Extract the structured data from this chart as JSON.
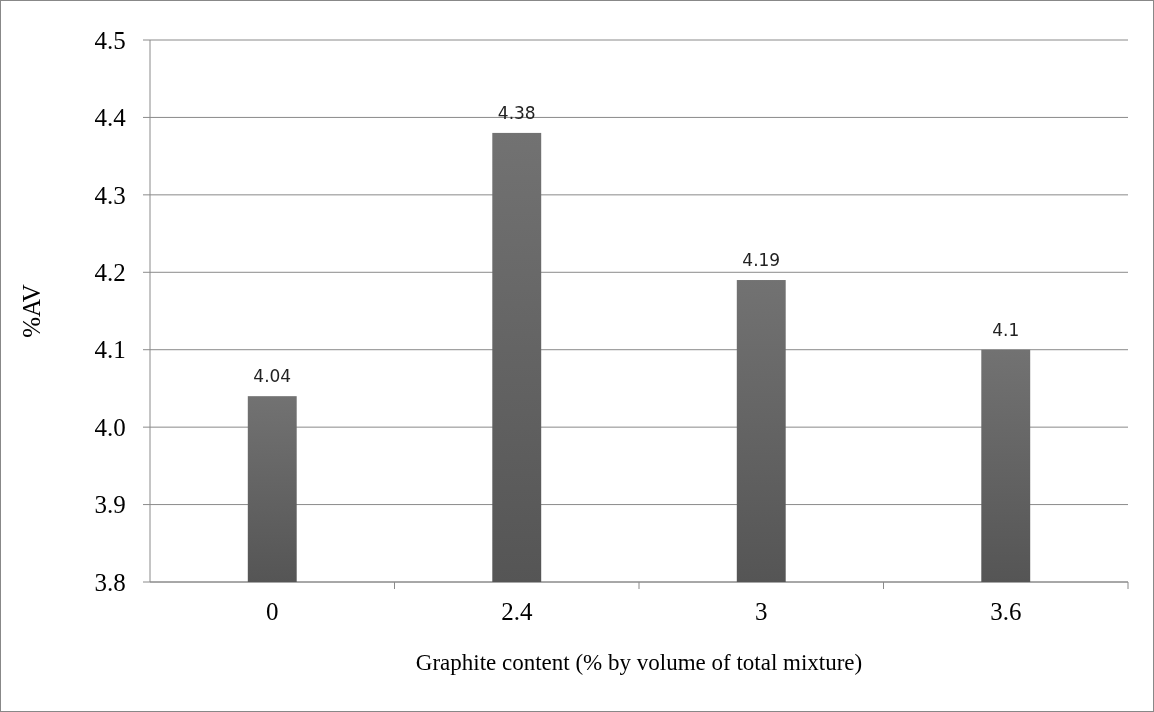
{
  "chart_data": {
    "type": "bar",
    "xlabel": "Graphite content (% by volume of total mixture)",
    "ylabel": "%AV",
    "categories": [
      "0",
      "2.4",
      "3",
      "3.6"
    ],
    "values": [
      4.04,
      4.38,
      4.19,
      4.1
    ],
    "color": "#5f5f5f",
    "ylim": [
      3.8,
      4.5
    ],
    "yticks": [
      {
        "value": 3.8,
        "label": "3.8"
      },
      {
        "value": 3.9,
        "label": "3.9"
      },
      {
        "value": 4.0,
        "label": "4.0"
      },
      {
        "value": 4.1,
        "label": "4.1"
      },
      {
        "value": 4.2,
        "label": "4.2"
      },
      {
        "value": 4.3,
        "label": "4.3"
      },
      {
        "value": 4.4,
        "label": "4.4"
      },
      {
        "value": 4.5,
        "label": "4.5"
      }
    ],
    "grid": "y",
    "data_labels": true
  }
}
